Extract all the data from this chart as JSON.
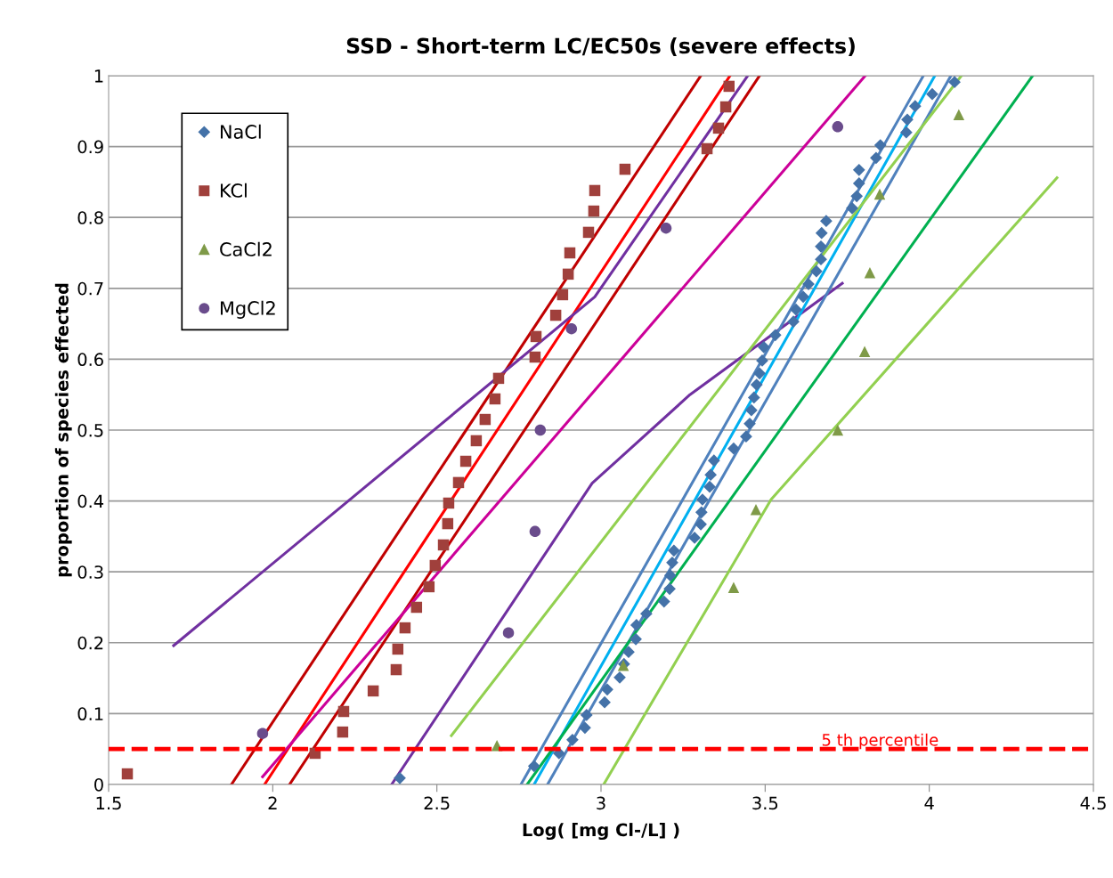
{
  "chart_data": {
    "type": "scatter",
    "title": "SSD - Short-term LC/EC50s (severe effects)",
    "xlabel": "Log( [mg Cl-/L] )",
    "ylabel": "proportion of species effected",
    "xlim": [
      1.5,
      4.5
    ],
    "ylim": [
      0,
      1
    ],
    "xticks": [
      1.5,
      2,
      2.5,
      3,
      3.5,
      4,
      4.5
    ],
    "yticks": [
      0,
      0.1,
      0.2,
      0.3,
      0.4,
      0.5,
      0.6,
      0.7,
      0.8,
      0.9,
      1
    ],
    "grid": "y",
    "legend": "top left",
    "ref_lines": [
      {
        "axis": "y",
        "value": 0.05,
        "label": "5 th percentile",
        "color": "#ff0000",
        "line_style": "dashed"
      }
    ],
    "series": [
      {
        "type": "line",
        "color": "#c00000",
        "x": [
          1.874,
          3.304
        ],
        "values": [
          0,
          1
        ]
      },
      {
        "type": "line",
        "color": "#c00000",
        "x": [
          2.051,
          3.483
        ],
        "values": [
          0,
          1
        ]
      },
      {
        "type": "line",
        "color": "#ff0000",
        "x": [
          1.975,
          3.393
        ],
        "values": [
          0,
          1
        ]
      },
      {
        "type": "line",
        "color": "#cc0099",
        "x": [
          1.969,
          3.805
        ],
        "values": [
          0.011,
          1
        ]
      },
      {
        "type": "line",
        "color": "#7030a0",
        "x": [
          1.698,
          2.981,
          3.447
        ],
        "values": [
          0.196,
          0.688,
          1
        ]
      },
      {
        "type": "line",
        "color": "#7030a0",
        "x": [
          2.362,
          2.973,
          3.271,
          3.735
        ],
        "values": [
          0,
          0.425,
          0.55,
          0.707
        ]
      },
      {
        "type": "line",
        "color": "#4f81bd",
        "x": [
          2.756,
          3.982
        ],
        "values": [
          0,
          1
        ]
      },
      {
        "type": "line",
        "color": "#4f81bd",
        "x": [
          2.837,
          4.066
        ],
        "values": [
          0,
          1
        ]
      },
      {
        "type": "line",
        "color": "#00b0f0",
        "x": [
          2.796,
          4.017
        ],
        "values": [
          0,
          1
        ]
      },
      {
        "type": "line",
        "color": "#92d050",
        "x": [
          2.544,
          4.098
        ],
        "values": [
          0.069,
          1
        ]
      },
      {
        "type": "line",
        "color": "#92d050",
        "x": [
          3.008,
          3.518,
          4.389
        ],
        "values": [
          0,
          0.402,
          0.856
        ]
      },
      {
        "type": "line",
        "color": "#00b050",
        "x": [
          2.775,
          4.315
        ],
        "values": [
          0,
          1
        ]
      },
      {
        "name": "NaCl",
        "marker": "diamond",
        "color": "#4472a8",
        "x": [
          2.387,
          2.796,
          2.872,
          2.913,
          2.951,
          2.956,
          3.011,
          3.019,
          3.057,
          3.07,
          3.084,
          3.106,
          3.108,
          3.138,
          3.192,
          3.209,
          3.211,
          3.217,
          3.222,
          3.285,
          3.304,
          3.306,
          3.309,
          3.331,
          3.334,
          3.344,
          3.404,
          3.442,
          3.453,
          3.458,
          3.466,
          3.474,
          3.483,
          3.491,
          3.496,
          3.531,
          3.586,
          3.594,
          3.616,
          3.632,
          3.656,
          3.67,
          3.67,
          3.672,
          3.686,
          3.765,
          3.779,
          3.786,
          3.786,
          3.838,
          3.851,
          3.93,
          3.933,
          3.957,
          4.009,
          4.077
        ],
        "values": [
          0.009,
          0.026,
          0.044,
          0.063,
          0.08,
          0.098,
          0.116,
          0.134,
          0.151,
          0.17,
          0.187,
          0.205,
          0.225,
          0.241,
          0.258,
          0.276,
          0.295,
          0.313,
          0.33,
          0.348,
          0.367,
          0.384,
          0.402,
          0.42,
          0.437,
          0.457,
          0.474,
          0.491,
          0.509,
          0.528,
          0.546,
          0.564,
          0.58,
          0.598,
          0.617,
          0.634,
          0.653,
          0.67,
          0.688,
          0.706,
          0.724,
          0.741,
          0.759,
          0.778,
          0.795,
          0.813,
          0.83,
          0.848,
          0.867,
          0.884,
          0.902,
          0.92,
          0.938,
          0.957,
          0.974,
          0.991
        ]
      },
      {
        "name": "KCl",
        "marker": "square",
        "color": "#a0403c",
        "x": [
          1.557,
          2.129,
          2.213,
          2.216,
          2.306,
          2.376,
          2.381,
          2.403,
          2.438,
          2.476,
          2.495,
          2.52,
          2.533,
          2.536,
          2.566,
          2.588,
          2.62,
          2.647,
          2.677,
          2.688,
          2.799,
          2.802,
          2.862,
          2.883,
          2.9,
          2.905,
          2.962,
          2.978,
          2.981,
          3.073,
          3.323,
          3.358,
          3.38,
          3.39
        ],
        "values": [
          0.015,
          0.044,
          0.074,
          0.103,
          0.132,
          0.162,
          0.191,
          0.221,
          0.25,
          0.279,
          0.309,
          0.338,
          0.368,
          0.397,
          0.426,
          0.456,
          0.485,
          0.515,
          0.544,
          0.573,
          0.603,
          0.632,
          0.662,
          0.691,
          0.72,
          0.75,
          0.779,
          0.809,
          0.838,
          0.868,
          0.897,
          0.926,
          0.956,
          0.985
        ]
      },
      {
        "name": "CaCl2",
        "marker": "triangle",
        "color": "#7f9a48",
        "x": [
          2.683,
          3.068,
          3.404,
          3.472,
          3.721,
          3.803,
          3.819,
          3.849,
          4.09
        ],
        "values": [
          0.055,
          0.168,
          0.278,
          0.388,
          0.5,
          0.611,
          0.722,
          0.833,
          0.945
        ]
      },
      {
        "name": "MgCl2",
        "marker": "circle",
        "color": "#6a4c8c",
        "x": [
          1.969,
          2.718,
          2.799,
          2.815,
          2.91,
          3.198,
          3.721
        ],
        "values": [
          0.072,
          0.214,
          0.357,
          0.5,
          0.643,
          0.785,
          0.928
        ]
      }
    ]
  }
}
